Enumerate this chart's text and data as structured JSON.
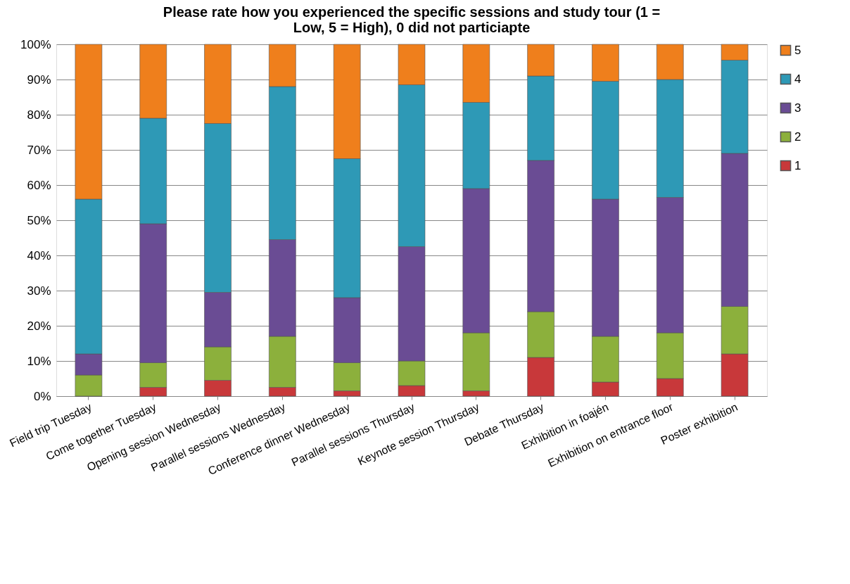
{
  "chart_data": {
    "type": "bar",
    "stacked": true,
    "title": "Please rate how you experienced the specific sessions and study tour (1 = Low, 5 = High), 0 did not particiapte",
    "categories": [
      "Field trip Tuesday",
      "Come together Tuesday",
      "Opening session Wednesday",
      "Parallel sessions Wednesday",
      "Conference dinner Wednesday",
      "Parallel sessions Thursday",
      "Keynote session Thursday",
      "Debate Thursday",
      "Exhibition in foajén",
      "Exhibition on entrance floor",
      "Poster exhibition"
    ],
    "series": [
      {
        "name": "1",
        "color": "#c8383a",
        "values": [
          0,
          2.5,
          4.5,
          2.5,
          1.5,
          3,
          1.5,
          11,
          4,
          5,
          12
        ]
      },
      {
        "name": "2",
        "color": "#8cb03c",
        "values": [
          6,
          7,
          9.5,
          14.5,
          8,
          7,
          16.5,
          13,
          13,
          13,
          13.5
        ]
      },
      {
        "name": "3",
        "color": "#6a4c94",
        "values": [
          6,
          39.5,
          15.5,
          27.5,
          18.5,
          32.5,
          41,
          43,
          39,
          38.5,
          43.5
        ]
      },
      {
        "name": "4",
        "color": "#2e99b6",
        "values": [
          44,
          30,
          48,
          43.5,
          39.5,
          46,
          24.5,
          24,
          33.5,
          33.5,
          26.5
        ]
      },
      {
        "name": "5",
        "color": "#ef7f1c",
        "values": [
          44,
          21,
          22.5,
          12,
          32.5,
          11.5,
          16.5,
          9,
          10.5,
          10,
          4.5
        ]
      }
    ],
    "ylim": [
      0,
      100
    ],
    "yticks": [
      {
        "value": 0,
        "label": "0%"
      },
      {
        "value": 10,
        "label": "10%"
      },
      {
        "value": 20,
        "label": "20%"
      },
      {
        "value": 30,
        "label": "30%"
      },
      {
        "value": 40,
        "label": "40%"
      },
      {
        "value": 50,
        "label": "50%"
      },
      {
        "value": 60,
        "label": "60%"
      },
      {
        "value": 70,
        "label": "70%"
      },
      {
        "value": 80,
        "label": "80%"
      },
      {
        "value": 90,
        "label": "90%"
      },
      {
        "value": 100,
        "label": "100%"
      }
    ],
    "grid": "y",
    "legend": "right"
  }
}
